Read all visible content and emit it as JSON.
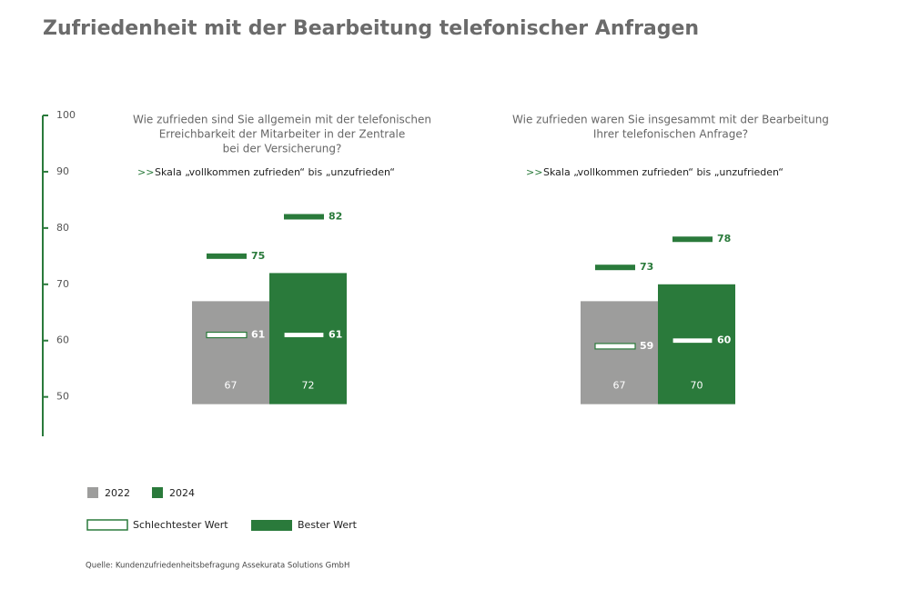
{
  "chart_data": {
    "type": "bar",
    "title": "Zufriedenheit mit der Bearbeitung telefonischer Anfragen",
    "questions": [
      [
        "Wie zufrieden sind Sie allgemein mit der telefonischen",
        "Erreichbarkeit der Mitarbeiter in der Zentrale",
        "bei der Versicherung?"
      ],
      [
        "Wie zufrieden waren Sie insgesammt mit der Bearbeitung",
        "Ihrer telefonischen Anfrage?"
      ]
    ],
    "scale_marker": ">>",
    "scale_notes": [
      "Skala „vollkommen zufrieden“ bis „unzufrieden“",
      "Skala „vollkommen zufrieden“ bis „unzufrieden“"
    ],
    "ylim": [
      43,
      100
    ],
    "yticks": [
      50,
      60,
      70,
      80,
      90,
      100
    ],
    "series": [
      {
        "name": "2022",
        "color": "#9d9d9c",
        "values": [
          67,
          67
        ],
        "worst": [
          61,
          59
        ],
        "best": [
          75,
          73
        ]
      },
      {
        "name": "2024",
        "color": "#2a7a3b",
        "values": [
          72,
          70
        ],
        "worst": [
          61,
          60
        ],
        "best": [
          82,
          78
        ]
      }
    ],
    "worst_label": "Schlechtester Wert",
    "best_label": "Bester Wert",
    "source": "Quelle: Kundenzufriedenheitsbefragung Assekurata Solutions GmbH"
  }
}
